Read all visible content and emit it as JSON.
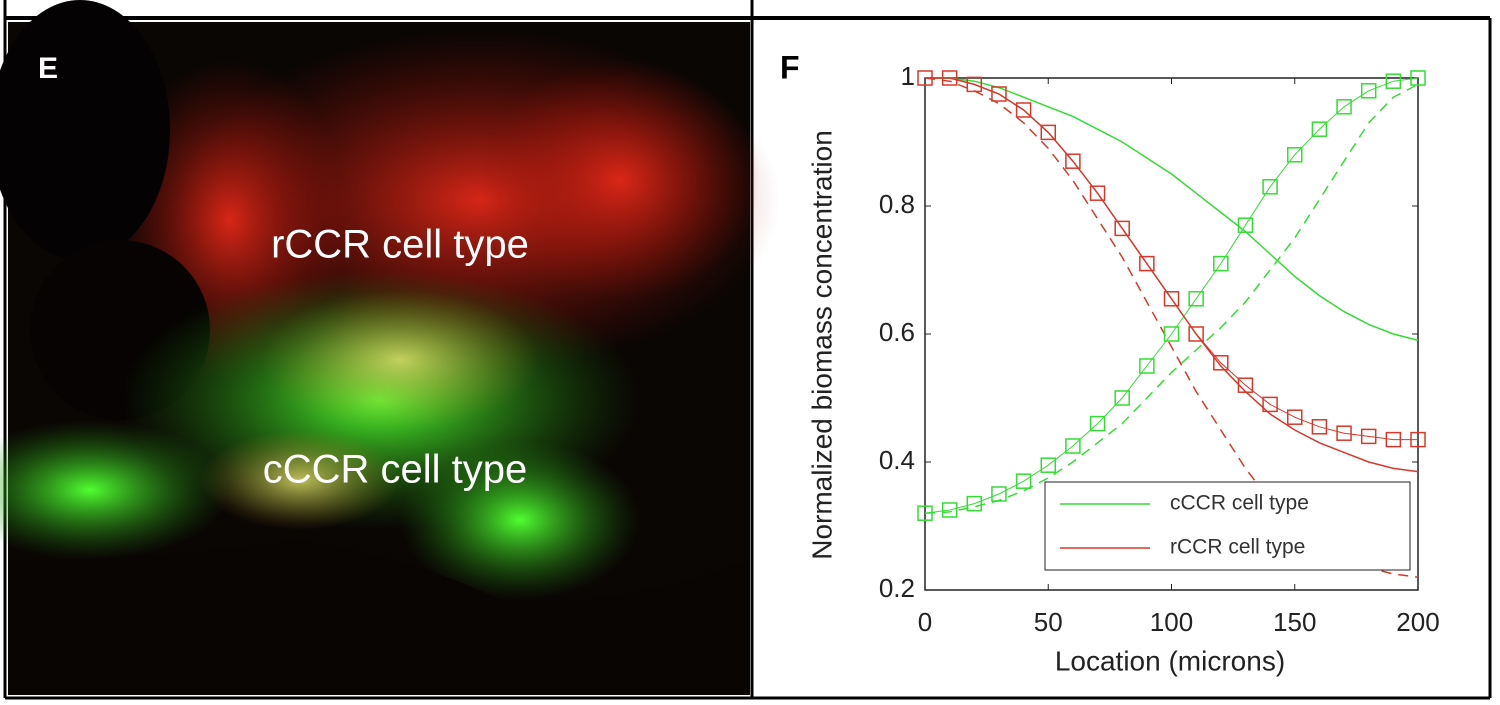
{
  "image_panel": {
    "label": "E",
    "annotations": [
      "rCCR cell type",
      "cCCR cell type"
    ]
  },
  "chart_data": {
    "type": "line",
    "panel_label": "F",
    "xlabel": "Location (microns)",
    "ylabel": "Normalized biomass concentration",
    "xlim": [
      0,
      200
    ],
    "xticks": [
      0,
      50,
      100,
      150,
      200
    ],
    "ylim": [
      0.2,
      1
    ],
    "yticks": [
      0.2,
      0.4,
      0.6,
      0.8,
      1
    ],
    "legend": "lower right",
    "x": [
      0,
      10,
      20,
      30,
      40,
      50,
      60,
      70,
      80,
      90,
      100,
      110,
      120,
      130,
      140,
      150,
      160,
      170,
      180,
      190,
      200
    ],
    "series": [
      {
        "name": "cCCR cell type",
        "color": "#33dd33",
        "style": "solid",
        "values": [
          1,
          1,
          0.995,
          0.985,
          0.97,
          0.955,
          0.94,
          0.92,
          0.9,
          0.875,
          0.85,
          0.82,
          0.79,
          0.76,
          0.725,
          0.69,
          0.66,
          0.635,
          0.615,
          0.6,
          0.59
        ]
      },
      {
        "name": "rCCR cell type",
        "color": "#d8382a",
        "style": "solid",
        "values": [
          1,
          1,
          0.99,
          0.975,
          0.95,
          0.915,
          0.87,
          0.82,
          0.765,
          0.71,
          0.655,
          0.6,
          0.55,
          0.51,
          0.475,
          0.45,
          0.43,
          0.415,
          0.4,
          0.39,
          0.385
        ]
      },
      {
        "color": "#33dd33",
        "style": "dashed",
        "values": [
          0.32,
          0.322,
          0.33,
          0.34,
          0.355,
          0.375,
          0.4,
          0.43,
          0.46,
          0.5,
          0.54,
          0.575,
          0.61,
          0.65,
          0.7,
          0.75,
          0.81,
          0.87,
          0.93,
          0.97,
          0.99
        ]
      },
      {
        "color": "#d8382a",
        "style": "dashed",
        "values": [
          1,
          0.995,
          0.98,
          0.96,
          0.93,
          0.89,
          0.84,
          0.78,
          0.72,
          0.65,
          0.58,
          0.51,
          0.45,
          0.39,
          0.34,
          0.3,
          0.27,
          0.25,
          0.235,
          0.225,
          0.22
        ]
      },
      {
        "color": "#33dd33",
        "style": "markers",
        "values": [
          0.32,
          0.325,
          0.335,
          0.35,
          0.37,
          0.395,
          0.425,
          0.46,
          0.5,
          0.55,
          0.6,
          0.655,
          0.71,
          0.77,
          0.83,
          0.88,
          0.92,
          0.955,
          0.98,
          0.995,
          1
        ]
      },
      {
        "color": "#d8382a",
        "style": "markers",
        "values": [
          1,
          1,
          0.99,
          0.975,
          0.95,
          0.915,
          0.87,
          0.82,
          0.765,
          0.71,
          0.655,
          0.6,
          0.555,
          0.52,
          0.49,
          0.47,
          0.455,
          0.445,
          0.44,
          0.435,
          0.435
        ]
      }
    ]
  }
}
